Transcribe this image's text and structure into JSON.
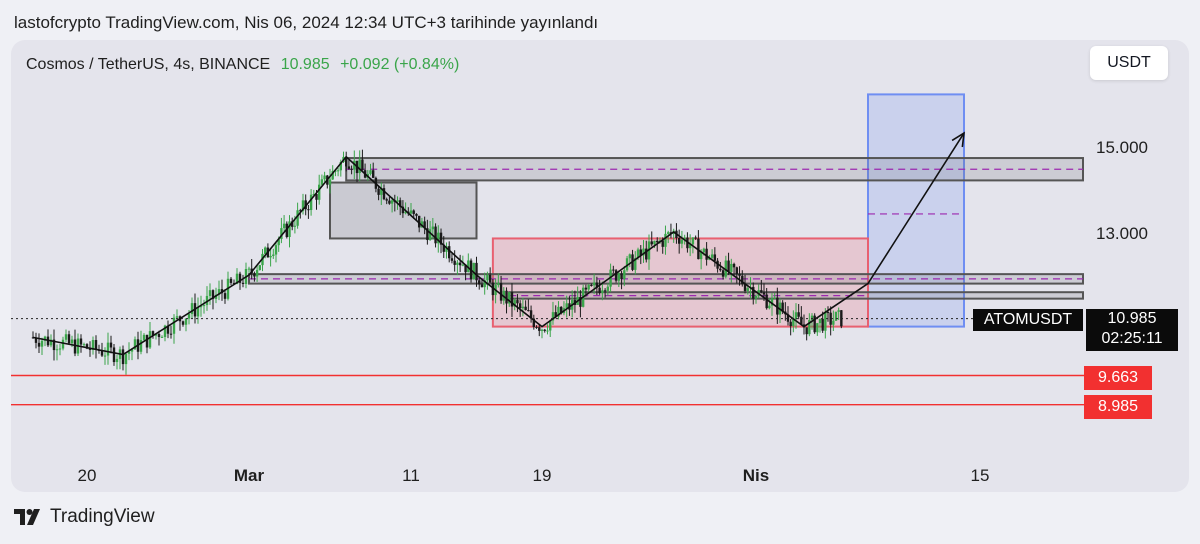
{
  "header": {
    "published": "lastofcrypto TradingView.com, Nis 06, 2024 12:34 UTC+3 tarihinde yayınlandı"
  },
  "legend": {
    "symbol": "Cosmos / TetherUS, 4s, BINANCE",
    "price": "10.985",
    "change": "+0.092 (+0.84%)"
  },
  "currency_button": "USDT",
  "price_axis": {
    "labels": [
      "15.000",
      "13.000"
    ]
  },
  "time_axis": {
    "labels": [
      "20",
      "Mar",
      "11",
      "19",
      "Nis",
      "15"
    ]
  },
  "current_price": {
    "symbol": "ATOMUSDT",
    "price": "10.985",
    "countdown": "02:25:11"
  },
  "levels": [
    "9.663",
    "8.985"
  ],
  "footer": {
    "brand": "TradingView"
  },
  "colors": {
    "bull": "#3aa54a",
    "bear": "#1a1a1a",
    "level_line": "#f23030",
    "target_box": "#6f8ef2",
    "range_box": "#e86070",
    "dashed": "#9c27b0"
  },
  "chart_data": {
    "type": "candlestick",
    "title": "Cosmos / TetherUS, 4s, BINANCE",
    "ylim": [
      8.6,
      16.5
    ],
    "y_ticks": [
      13,
      15
    ],
    "last_price": 10.985,
    "path_points": [
      {
        "x": "Feb 18",
        "y": 10.55
      },
      {
        "x": "Feb 23",
        "y": 10.15
      },
      {
        "x": "Mar 1",
        "y": 12.0
      },
      {
        "x": "Mar 7",
        "y": 14.75
      },
      {
        "x": "Mar 15",
        "y": 12.0
      },
      {
        "x": "Mar 19",
        "y": 10.8
      },
      {
        "x": "Mar 27",
        "y": 13.0
      },
      {
        "x": "Apr 4",
        "y": 10.8
      },
      {
        "x": "Apr 8",
        "y": 11.8
      },
      {
        "x": "Apr 14",
        "y": 15.3
      }
    ],
    "zones": [
      {
        "name": "upper resistance",
        "low": 14.2,
        "high": 14.72
      },
      {
        "name": "consolidation box",
        "low": 12.85,
        "high": 14.15
      },
      {
        "name": "range box",
        "low": 10.8,
        "high": 12.85
      },
      {
        "name": "target box",
        "low": 10.8,
        "high": 16.2
      },
      {
        "name": "support band 1",
        "low": 11.8,
        "high": 12.02
      },
      {
        "name": "support band 2",
        "low": 11.45,
        "high": 11.6
      }
    ],
    "levels": [
      9.663,
      8.985
    ]
  }
}
